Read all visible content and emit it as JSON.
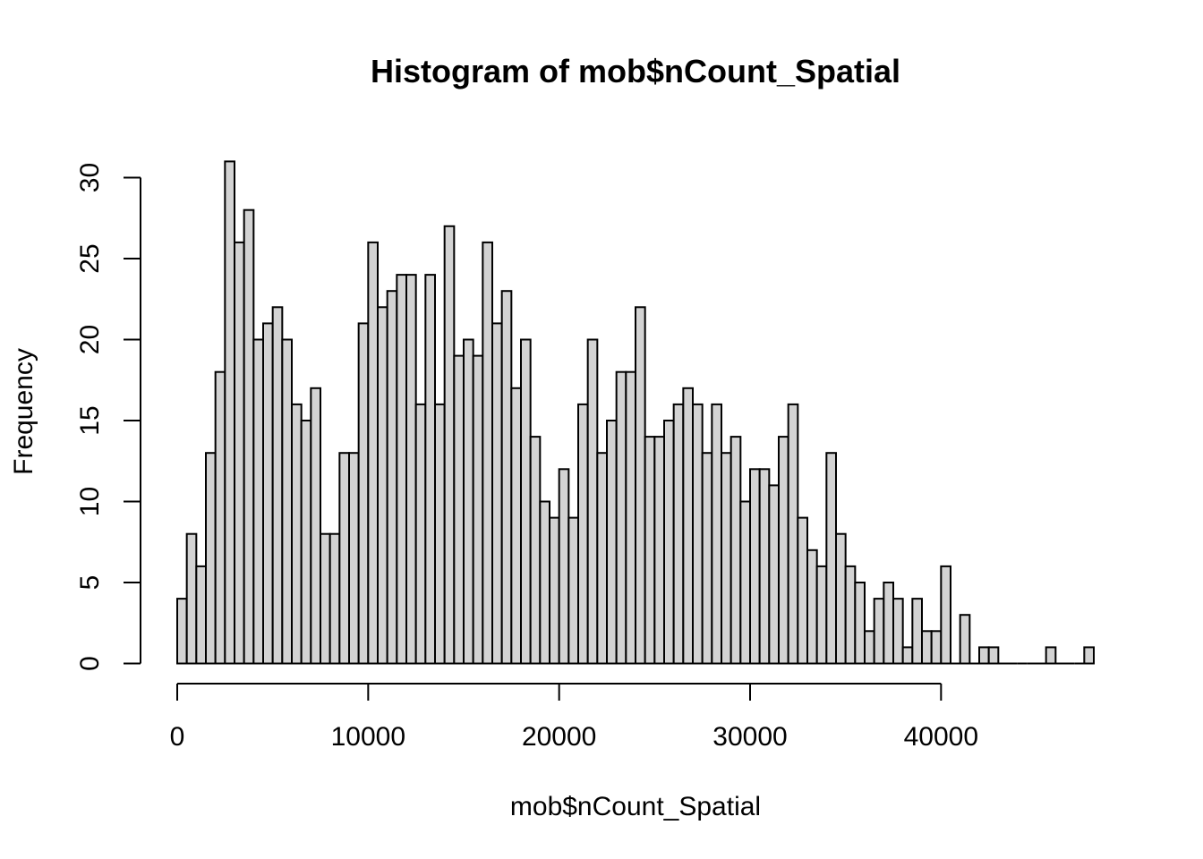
{
  "chart_data": {
    "type": "bar",
    "title": "Histogram of mob$nCount_Spatial",
    "xlabel": "mob$nCount_Spatial",
    "ylabel": "Frequency",
    "bin_width": 500,
    "x_start": 0,
    "xlim": [
      0,
      48000
    ],
    "ylim": [
      0,
      31
    ],
    "x_ticks": [
      0,
      10000,
      20000,
      30000,
      40000
    ],
    "y_ticks": [
      0,
      5,
      10,
      15,
      20,
      25,
      30
    ],
    "values": [
      4,
      8,
      6,
      13,
      18,
      31,
      26,
      28,
      20,
      21,
      22,
      20,
      16,
      15,
      17,
      8,
      8,
      13,
      13,
      21,
      26,
      22,
      23,
      24,
      24,
      16,
      24,
      16,
      27,
      19,
      20,
      19,
      26,
      21,
      23,
      17,
      20,
      14,
      10,
      9,
      12,
      9,
      16,
      20,
      13,
      15,
      18,
      18,
      22,
      14,
      14,
      15,
      16,
      17,
      16,
      13,
      16,
      13,
      14,
      10,
      12,
      12,
      11,
      14,
      16,
      9,
      7,
      6,
      13,
      8,
      6,
      5,
      2,
      4,
      5,
      4,
      1,
      4,
      2,
      2,
      6,
      0,
      3,
      0,
      1,
      1,
      0,
      0,
      0,
      0,
      0,
      1,
      0,
      0,
      0,
      1
    ],
    "bar_fill": "#d3d3d3",
    "bar_stroke": "#000000",
    "grid": false
  }
}
